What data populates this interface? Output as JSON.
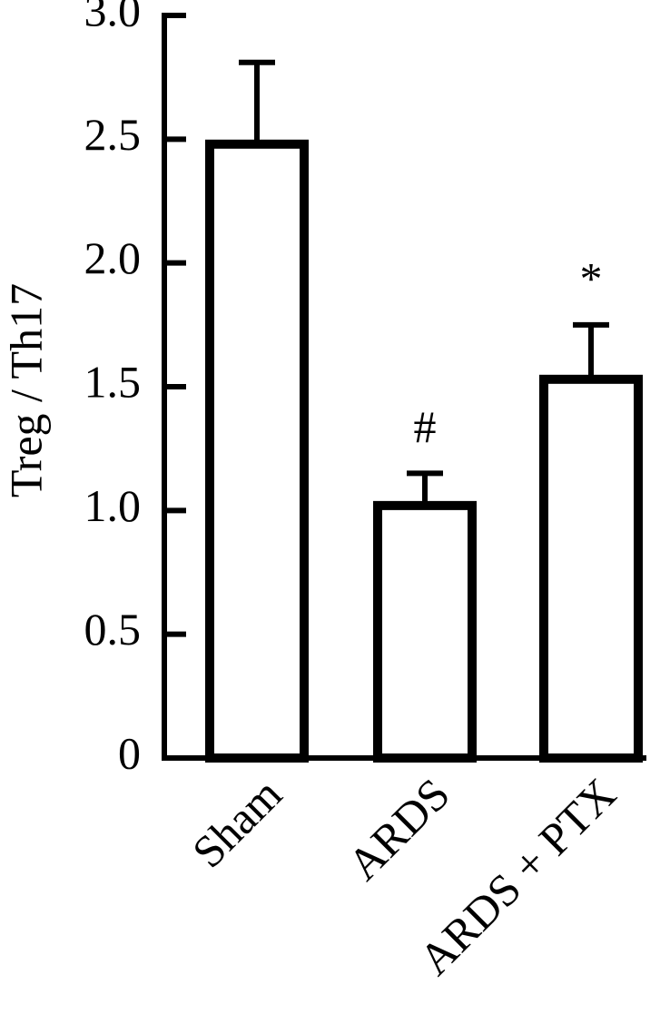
{
  "chart_data": {
    "type": "bar",
    "ylabel": "Treg / Th17",
    "categories": [
      "Sham",
      "ARDS",
      "ARDS + PTX"
    ],
    "values": [
      2.48,
      1.02,
      1.53
    ],
    "errors": [
      0.33,
      0.13,
      0.22
    ],
    "markers": [
      null,
      "#",
      "*"
    ],
    "color": "#ffffff",
    "ylim": [
      0,
      3.0
    ],
    "yticks": [
      0,
      0.5,
      {
        "value": 1,
        "label": "1.0"
      },
      1.5,
      {
        "value": 2,
        "label": "2.0"
      },
      2.5,
      {
        "value": 3,
        "label": "3.0"
      }
    ]
  }
}
